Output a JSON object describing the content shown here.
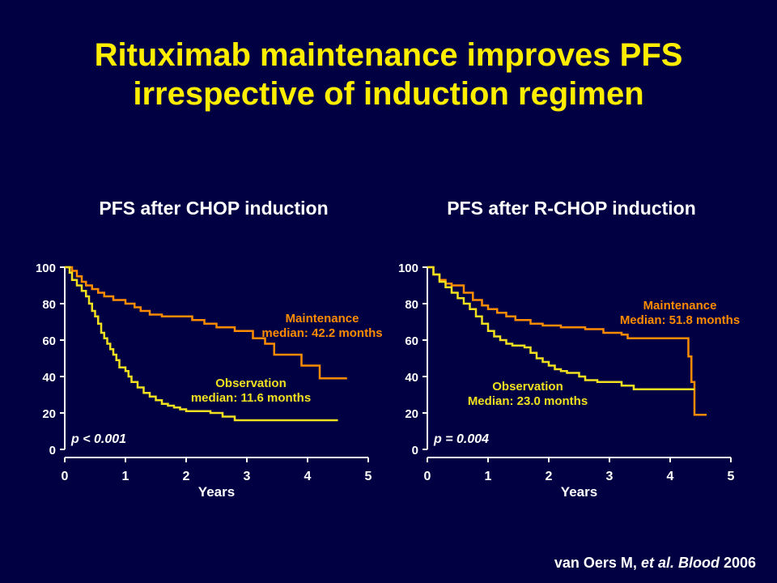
{
  "slide": {
    "title_line1": "Rituximab maintenance improves PFS",
    "title_line2": "irrespective of induction regimen",
    "citation_author": "van Oers M, ",
    "citation_etal": "et al. Blood",
    "citation_year": " 2006"
  },
  "colors": {
    "background": "#000042",
    "title": "#FFEE00",
    "maintenance": "#FF8C00",
    "observation": "#F0E020",
    "axis": "#FFFFFF"
  },
  "chart_data": [
    {
      "type": "line",
      "title": "PFS after CHOP induction",
      "xlabel": "Years",
      "ylabel": "",
      "xlim": [
        0,
        5
      ],
      "ylim": [
        0,
        100
      ],
      "xticks": [
        "0",
        "1",
        "2",
        "3",
        "4",
        "5"
      ],
      "yticks": [
        "0",
        "20",
        "40",
        "60",
        "80",
        "100"
      ],
      "p_value": "p < 0.001",
      "grid": false,
      "series": [
        {
          "name": "Maintenance",
          "label_line1": "Maintenance",
          "label_line2": "median: 42.2 months",
          "step": true,
          "x": [
            0,
            0.12,
            0.2,
            0.28,
            0.35,
            0.45,
            0.55,
            0.65,
            0.8,
            1.0,
            1.15,
            1.25,
            1.4,
            1.6,
            1.8,
            2.1,
            2.3,
            2.5,
            2.8,
            3.1,
            3.3,
            3.45,
            3.9,
            4.2,
            4.65
          ],
          "y": [
            100,
            98,
            95,
            92,
            90,
            88,
            86,
            84,
            82,
            80,
            78,
            76,
            74,
            73,
            73,
            71,
            69,
            67,
            65,
            61,
            58,
            52,
            46,
            39,
            39
          ]
        },
        {
          "name": "Observation",
          "label_line1": "Observation",
          "label_line2": "median: 11.6 months",
          "step": true,
          "x": [
            0,
            0.08,
            0.12,
            0.2,
            0.28,
            0.35,
            0.4,
            0.45,
            0.5,
            0.55,
            0.6,
            0.65,
            0.7,
            0.75,
            0.8,
            0.85,
            0.9,
            1.0,
            1.05,
            1.1,
            1.2,
            1.3,
            1.4,
            1.5,
            1.6,
            1.7,
            1.8,
            1.9,
            2.0,
            2.1,
            2.2,
            2.4,
            2.6,
            2.8,
            3.1,
            3.5,
            4.0,
            4.5
          ],
          "y": [
            100,
            97,
            93,
            90,
            87,
            84,
            80,
            76,
            73,
            69,
            64,
            61,
            58,
            55,
            52,
            49,
            45,
            43,
            40,
            37,
            34,
            31,
            29,
            27,
            25,
            24,
            23,
            22,
            21,
            21,
            21,
            20,
            18,
            16,
            16,
            16,
            16,
            16
          ]
        }
      ]
    },
    {
      "type": "line",
      "title": "PFS after R-CHOP induction",
      "xlabel": "Years",
      "ylabel": "",
      "xlim": [
        0,
        5
      ],
      "ylim": [
        0,
        100
      ],
      "xticks": [
        "0",
        "1",
        "2",
        "3",
        "4",
        "5"
      ],
      "yticks": [
        "0",
        "20",
        "40",
        "60",
        "80",
        "100"
      ],
      "p_value": "p = 0.004",
      "grid": false,
      "series": [
        {
          "name": "Maintenance",
          "label_line1": "Maintenance",
          "label_line2": "Median: 51.8 months",
          "step": true,
          "x": [
            0,
            0.1,
            0.2,
            0.3,
            0.4,
            0.6,
            0.75,
            0.9,
            1.0,
            1.15,
            1.3,
            1.45,
            1.7,
            1.9,
            2.2,
            2.6,
            2.9,
            3.2,
            3.3,
            3.6,
            4.1,
            4.3,
            4.35,
            4.4,
            4.6
          ],
          "y": [
            100,
            96,
            93,
            91,
            90,
            86,
            82,
            79,
            77,
            75,
            73,
            71,
            69,
            68,
            67,
            66,
            64,
            63,
            61,
            61,
            61,
            51,
            37,
            19,
            19
          ]
        },
        {
          "name": "Observation",
          "label_line1": "Observation",
          "label_line2": "Median: 23.0 months",
          "step": true,
          "x": [
            0,
            0.1,
            0.2,
            0.3,
            0.4,
            0.5,
            0.6,
            0.7,
            0.8,
            0.9,
            1.0,
            1.1,
            1.2,
            1.3,
            1.4,
            1.5,
            1.6,
            1.7,
            1.8,
            1.9,
            2.0,
            2.1,
            2.2,
            2.3,
            2.5,
            2.6,
            2.8,
            3.0,
            3.2,
            3.4,
            3.7,
            4.0,
            4.3,
            4.4
          ],
          "y": [
            100,
            96,
            92,
            89,
            86,
            83,
            80,
            77,
            73,
            69,
            65,
            62,
            60,
            58,
            57,
            57,
            56,
            53,
            50,
            48,
            46,
            44,
            43,
            42,
            40,
            38,
            37,
            37,
            35,
            33,
            33,
            33,
            33,
            33
          ]
        }
      ]
    }
  ]
}
